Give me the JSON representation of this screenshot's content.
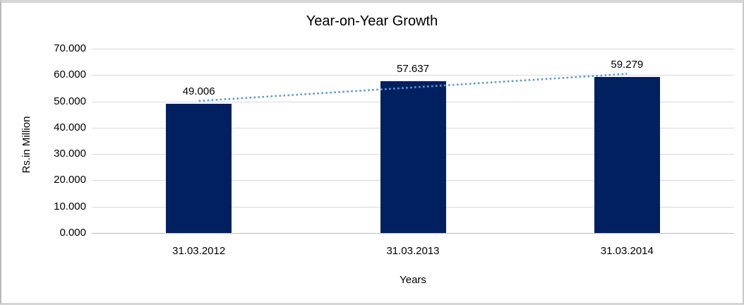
{
  "window": {
    "background_color": "#ffffff",
    "frame_border_color": "#d6d6d6"
  },
  "chart_data": {
    "type": "bar",
    "title": "Year-on-Year Growth",
    "categories": [
      "31.03.2012",
      "31.03.2013",
      "31.03.2014"
    ],
    "values": [
      49.006,
      57.637,
      59.279
    ],
    "data_labels": [
      "49.006",
      "57.637",
      "59.279"
    ],
    "xlabel": "Years",
    "ylabel": "Rs.in Million",
    "ylim": [
      0,
      70
    ],
    "ytick_step": 10,
    "yticks": [
      "0.000",
      "10.000",
      "20.000",
      "30.000",
      "40.000",
      "50.000",
      "60.000",
      "70.000"
    ],
    "grid": true,
    "legend_position": "none",
    "bar_color": "#002060",
    "gridline_color": "#d9d9d9",
    "axis_line_color": "#bfbfbf",
    "trendline": {
      "type": "linear",
      "style": "dotted",
      "color": "#5b9bd5",
      "series": "values"
    }
  }
}
